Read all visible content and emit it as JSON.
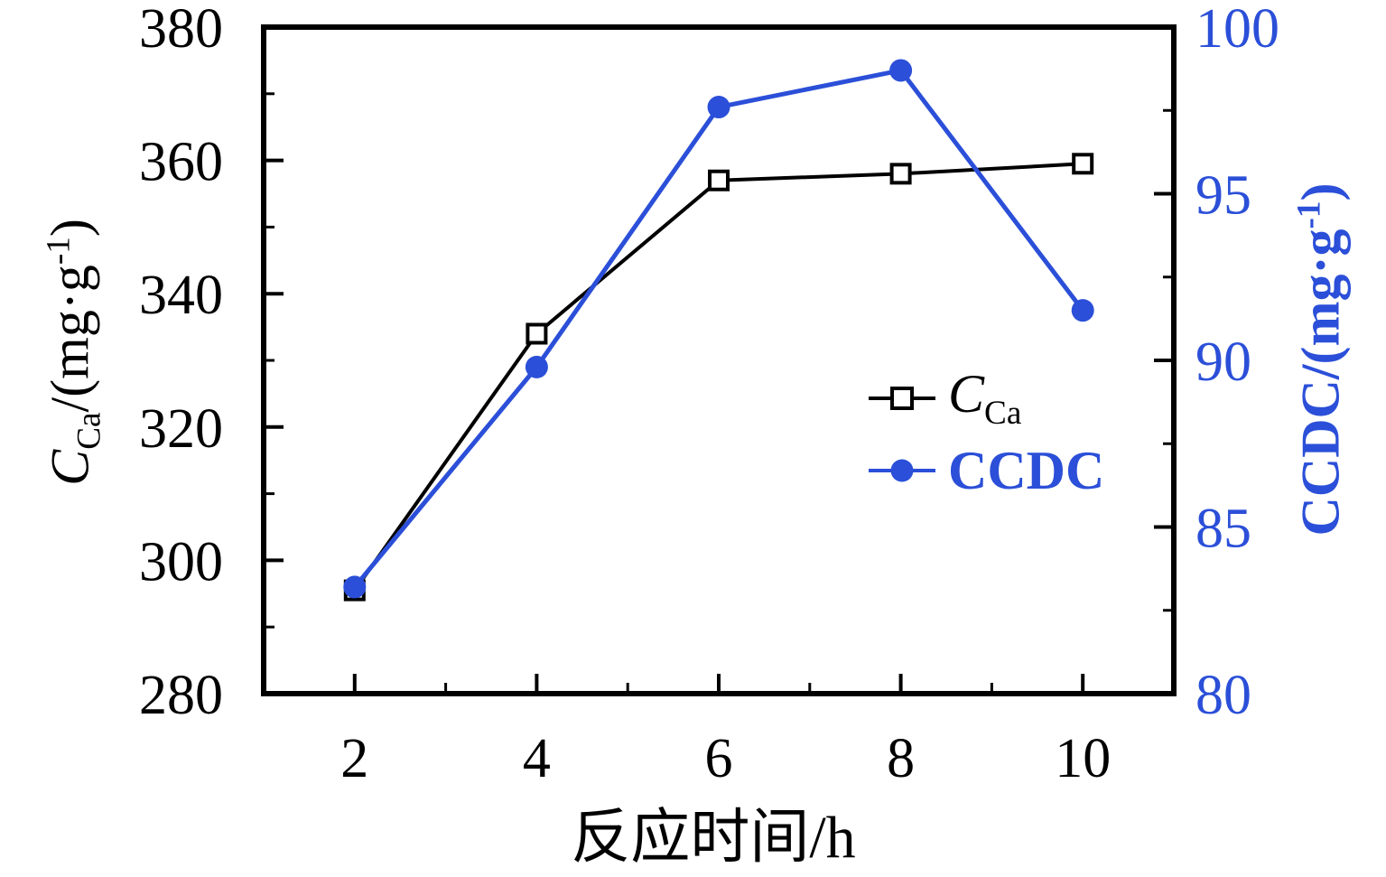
{
  "chart_data": {
    "type": "line",
    "title": "",
    "x": [
      2,
      4,
      6,
      8,
      10
    ],
    "xlim": [
      1,
      11
    ],
    "x_ticks": [
      2,
      4,
      6,
      8,
      10
    ],
    "x_minor_ticks": [
      3,
      5,
      7,
      9
    ],
    "xlabel": "反应时间/h",
    "grid": false,
    "background": "#ffffff",
    "axes": {
      "left": {
        "label_parts": {
          "italic": "C",
          "sub": "Ca",
          "mid": "/(mg·g",
          "sup": "-1",
          "end": ")"
        },
        "lim": [
          280,
          380
        ],
        "ticks": [
          280,
          300,
          320,
          340,
          360,
          380
        ],
        "minor_ticks": [
          290,
          310,
          330,
          350,
          370
        ],
        "color": "#000000"
      },
      "right": {
        "label_parts": {
          "main": "CCDC/(mg·g",
          "sup": "-1",
          "end": ")"
        },
        "lim": [
          80,
          100
        ],
        "ticks": [
          80,
          85,
          90,
          95,
          100
        ],
        "minor_ticks": [
          82.5,
          87.5,
          92.5,
          97.5
        ],
        "color": "#2b4fd8"
      }
    },
    "series": [
      {
        "name": "C_Ca",
        "axis": "left",
        "color": "#000000",
        "marker": "open-square",
        "line_width": 4,
        "values": [
          295.5,
          334,
          357,
          358,
          359.5
        ]
      },
      {
        "name": "CCDC",
        "axis": "right",
        "color": "#2b4fd8",
        "marker": "filled-circle",
        "line_width": 5,
        "values": [
          83.2,
          89.8,
          97.6,
          98.7,
          91.5
        ]
      }
    ],
    "legend": {
      "position": "center-right",
      "items": [
        {
          "label_main": "C",
          "label_sub": "Ca"
        },
        {
          "label": "CCDC"
        }
      ]
    }
  }
}
